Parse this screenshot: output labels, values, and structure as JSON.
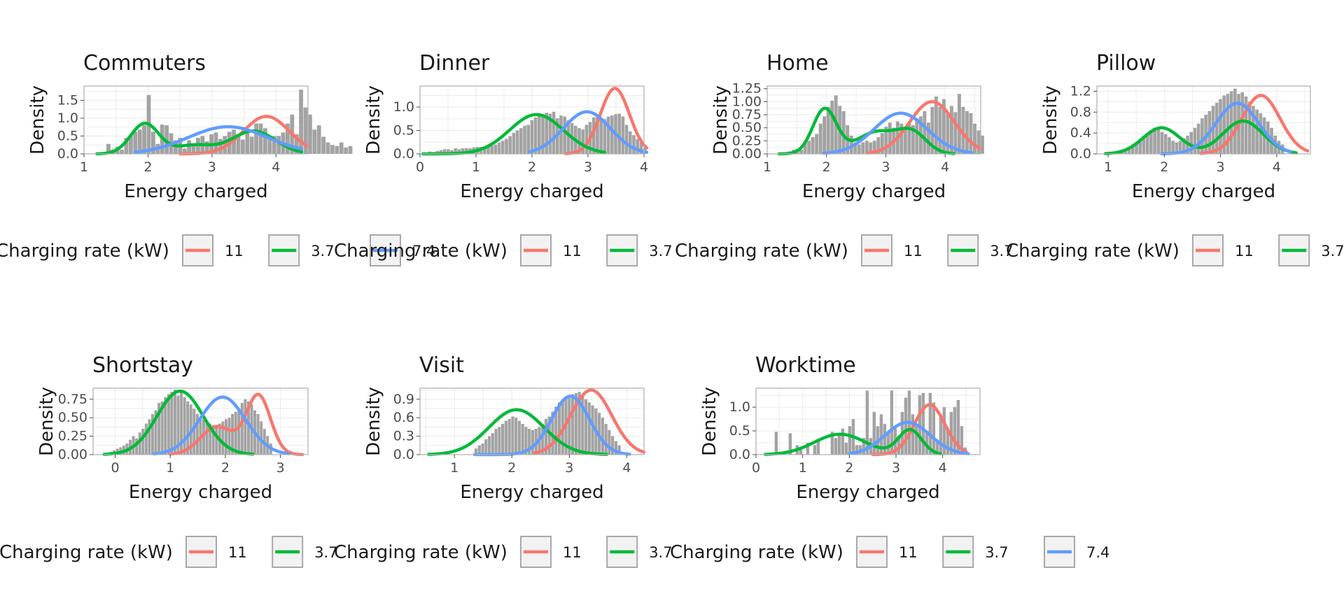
{
  "colors": {
    "rate_11": "#F8766D",
    "rate_3_7": "#00BA38",
    "rate_7_4": "#619CFF",
    "histogram": "#A3A3A3"
  },
  "legend": {
    "title": "Charging rate (kW)",
    "entries": [
      {
        "label": "11",
        "color": "#F8766D"
      },
      {
        "label": "3.7",
        "color": "#00BA38"
      },
      {
        "label": "7.4",
        "color": "#619CFF"
      }
    ]
  },
  "chart_data": [
    {
      "type": "area",
      "title": "Commuters",
      "xlabel": "Energy charged",
      "ylabel": "Density",
      "xlim": [
        1,
        4.5
      ],
      "ylim": [
        0,
        1.9
      ],
      "xticks": [
        1,
        2,
        3,
        4
      ],
      "yticks": [
        0.0,
        0.5,
        1.0,
        1.5
      ],
      "ytick_labels": [
        "0.0",
        "0.5",
        "1.0",
        "1.5"
      ],
      "grid": true,
      "histogram": {
        "range": [
          1.35,
          4.45
        ],
        "bin_width": 0.07,
        "heights": [
          0.28,
          0.12,
          0.2,
          0.12,
          0.45,
          0.5,
          0.62,
          0.68,
          0.8,
          1.65,
          0.62,
          0.28,
          0.82,
          0.8,
          0.58,
          0.38,
          0.45,
          0.15,
          0.38,
          0.22,
          0.45,
          0.5,
          0.35,
          0.55,
          0.6,
          0.42,
          0.5,
          0.62,
          0.68,
          0.5,
          0.4,
          0.58,
          0.48,
          0.85,
          0.85,
          0.72,
          0.48,
          0.5,
          0.5,
          0.6,
          0.85,
          1.1,
          0.55,
          1.8,
          1.3,
          1.1,
          0.68,
          0.8,
          0.48,
          0.32,
          0.25,
          0.22,
          0.32,
          0.18,
          0.22
        ]
      },
      "series": [
        {
          "name": "11",
          "color": "#F8766D",
          "x_range": [
            2.5,
            4.5
          ],
          "peak_x": 3.85,
          "peak_y": 1.05,
          "sd": 0.36
        },
        {
          "name": "3.7",
          "color": "#00BA38",
          "x_range": [
            1.2,
            4.4
          ],
          "components": [
            {
              "mean": 1.95,
              "sd": 0.22,
              "weight": 0.85
            },
            {
              "mean": 2.72,
              "sd": 0.3,
              "weight": 0.24
            },
            {
              "mean": 3.65,
              "sd": 0.34,
              "weight": 0.64
            }
          ]
        },
        {
          "name": "7.4",
          "color": "#619CFF",
          "x_range": [
            1.8,
            4.4
          ],
          "peak_x": 3.25,
          "peak_y": 0.76,
          "sd": 0.62
        }
      ]
    },
    {
      "type": "area",
      "title": "Dinner",
      "xlabel": "Energy charged",
      "ylabel": "Density",
      "xlim": [
        0,
        4
      ],
      "ylim": [
        0,
        1.45
      ],
      "xticks": [
        0,
        1,
        2,
        3,
        4
      ],
      "yticks": [
        0.0,
        0.5,
        1.0
      ],
      "ytick_labels": [
        "0.0",
        "0.5",
        "1.0"
      ],
      "grid": true,
      "histogram": {
        "range": [
          0.15,
          4.05
        ],
        "bin_width": 0.065,
        "heights": [
          0.05,
          0.04,
          0.06,
          0.08,
          0.1,
          0.1,
          0.08,
          0.12,
          0.1,
          0.12,
          0.12,
          0.12,
          0.14,
          0.15,
          0.15,
          0.16,
          0.18,
          0.18,
          0.2,
          0.24,
          0.28,
          0.32,
          0.38,
          0.45,
          0.5,
          0.55,
          0.6,
          0.62,
          0.72,
          0.78,
          0.82,
          0.84,
          0.88,
          0.86,
          0.9,
          0.76,
          0.82,
          0.8,
          0.72,
          0.66,
          0.6,
          0.55,
          0.52,
          0.62,
          0.68,
          0.78,
          0.8,
          0.72,
          0.74,
          0.8,
          0.82,
          0.85,
          0.86,
          0.8,
          0.62,
          0.48,
          0.4,
          0.32,
          0.24,
          0.12
        ]
      },
      "series": [
        {
          "name": "11",
          "color": "#F8766D",
          "x_range": [
            2.6,
            4.05
          ],
          "peak_x": 3.48,
          "peak_y": 1.4,
          "sd": 0.26
        },
        {
          "name": "3.7",
          "color": "#00BA38",
          "x_range": [
            0.05,
            3.3
          ],
          "peak_x": 2.08,
          "peak_y": 0.84,
          "sd": 0.48
        },
        {
          "name": "7.4",
          "color": "#619CFF",
          "x_range": [
            1.95,
            4.05
          ],
          "peak_x": 2.98,
          "peak_y": 0.9,
          "sd": 0.42
        }
      ]
    },
    {
      "type": "area",
      "title": "Home",
      "xlabel": "Energy charged",
      "ylabel": "Density",
      "xlim": [
        1,
        4.6
      ],
      "ylim": [
        0,
        1.3
      ],
      "xticks": [
        1,
        2,
        3,
        4
      ],
      "yticks": [
        0.0,
        0.25,
        0.5,
        0.75,
        1.0,
        1.25
      ],
      "ytick_labels": [
        "0.00",
        "0.25",
        "0.50",
        "0.75",
        "1.00",
        "1.25"
      ],
      "grid": true,
      "histogram": {
        "range": [
          1.35,
          4.55
        ],
        "bin_width": 0.065,
        "heights": [
          0.05,
          0.08,
          0.1,
          0.08,
          0.22,
          0.25,
          0.32,
          0.38,
          0.58,
          0.72,
          0.9,
          1.02,
          1.12,
          0.92,
          0.82,
          0.55,
          0.35,
          0.22,
          0.18,
          0.22,
          0.25,
          0.22,
          0.25,
          0.32,
          0.4,
          0.52,
          0.6,
          0.5,
          0.62,
          0.58,
          0.5,
          0.6,
          0.55,
          0.68,
          0.72,
          0.82,
          0.6,
          0.9,
          1.1,
          0.9,
          1.05,
          0.8,
          0.92,
          0.8,
          1.15,
          0.9,
          0.82,
          0.78,
          0.58,
          0.45,
          0.35
        ]
      },
      "series": [
        {
          "name": "11",
          "color": "#F8766D",
          "x_range": [
            2.7,
            4.6
          ],
          "peak_x": 3.78,
          "peak_y": 1.0,
          "sd": 0.38
        },
        {
          "name": "3.7",
          "color": "#00BA38",
          "x_range": [
            1.2,
            4.15
          ],
          "components": [
            {
              "mean": 1.97,
              "sd": 0.2,
              "weight": 0.86
            },
            {
              "mean": 2.85,
              "sd": 0.34,
              "weight": 0.42
            },
            {
              "mean": 3.45,
              "sd": 0.24,
              "weight": 0.38
            }
          ]
        },
        {
          "name": "7.4",
          "color": "#619CFF",
          "x_range": [
            1.95,
            4.45
          ],
          "peak_x": 3.25,
          "peak_y": 0.78,
          "sd": 0.45
        }
      ]
    },
    {
      "type": "area",
      "title": "Pillow",
      "xlabel": "Energy charged",
      "ylabel": "Density",
      "xlim": [
        0.8,
        4.6
      ],
      "ylim": [
        0,
        1.3
      ],
      "xticks": [
        1,
        2,
        3,
        4
      ],
      "yticks": [
        0.0,
        0.4,
        0.8,
        1.2
      ],
      "ytick_labels": [
        "0.0",
        "0.4",
        "0.8",
        "1.2"
      ],
      "grid": true,
      "histogram": {
        "range": [
          1.15,
          4.45
        ],
        "bin_width": 0.065,
        "heights": [
          0.05,
          0.08,
          0.1,
          0.12,
          0.18,
          0.22,
          0.28,
          0.35,
          0.4,
          0.45,
          0.5,
          0.48,
          0.42,
          0.38,
          0.32,
          0.25,
          0.22,
          0.25,
          0.3,
          0.35,
          0.42,
          0.5,
          0.58,
          0.68,
          0.75,
          0.82,
          0.92,
          0.98,
          1.05,
          1.12,
          1.15,
          1.2,
          1.25,
          1.15,
          1.18,
          1.1,
          1.0,
          0.92,
          0.85,
          0.78,
          0.7,
          0.62,
          0.5,
          0.35,
          0.25,
          0.18
        ]
      },
      "series": [
        {
          "name": "11",
          "color": "#F8766D",
          "x_range": [
            2.65,
            4.55
          ],
          "peak_x": 3.72,
          "peak_y": 1.12,
          "sd": 0.34
        },
        {
          "name": "3.7",
          "color": "#00BA38",
          "x_range": [
            0.95,
            4.35
          ],
          "components": [
            {
              "mean": 1.95,
              "sd": 0.33,
              "weight": 0.5
            },
            {
              "mean": 3.4,
              "sd": 0.36,
              "weight": 0.63
            }
          ]
        },
        {
          "name": "7.4",
          "color": "#619CFF",
          "x_range": [
            1.95,
            4.25
          ],
          "peak_x": 3.3,
          "peak_y": 0.97,
          "sd": 0.38
        }
      ]
    },
    {
      "type": "area",
      "title": "Shortstay",
      "xlabel": "Energy charged",
      "ylabel": "Density",
      "xlim": [
        -0.4,
        3.5
      ],
      "ylim": [
        0,
        0.9
      ],
      "xticks": [
        0,
        1,
        2,
        3
      ],
      "yticks": [
        0.0,
        0.25,
        0.5,
        0.75
      ],
      "ytick_labels": [
        "0.00",
        "0.25",
        "0.50",
        "0.75"
      ],
      "grid": true,
      "histogram": {
        "range": [
          -0.1,
          3.35
        ],
        "bin_width": 0.058,
        "heights": [
          0.04,
          0.06,
          0.08,
          0.1,
          0.12,
          0.15,
          0.2,
          0.25,
          0.22,
          0.3,
          0.35,
          0.42,
          0.48,
          0.55,
          0.6,
          0.7,
          0.72,
          0.78,
          0.82,
          0.85,
          0.88,
          0.8,
          0.85,
          0.78,
          0.72,
          0.68,
          0.62,
          0.55,
          0.5,
          0.48,
          0.45,
          0.42,
          0.4,
          0.38,
          0.42,
          0.45,
          0.48,
          0.5,
          0.55,
          0.58,
          0.62,
          0.7,
          0.75,
          0.72,
          0.68,
          0.6,
          0.55,
          0.45,
          0.35,
          0.25,
          0.15
        ]
      },
      "series": [
        {
          "name": "11",
          "color": "#F8766D",
          "x_range": [
            1.0,
            3.4
          ],
          "components": [
            {
              "mean": 1.85,
              "sd": 0.3,
              "weight": 0.38
            },
            {
              "mean": 2.6,
              "sd": 0.22,
              "weight": 0.8
            }
          ]
        },
        {
          "name": "3.7",
          "color": "#00BA38",
          "x_range": [
            -0.2,
            2.5
          ],
          "peak_x": 1.18,
          "peak_y": 0.86,
          "sd": 0.42
        },
        {
          "name": "7.4",
          "color": "#619CFF",
          "x_range": [
            0.7,
            3.15
          ],
          "peak_x": 1.95,
          "peak_y": 0.78,
          "sd": 0.42
        }
      ]
    },
    {
      "type": "area",
      "title": "Visit",
      "xlabel": "Energy charged",
      "ylabel": "Density",
      "xlim": [
        0.4,
        4.3
      ],
      "ylim": [
        0,
        1.08
      ],
      "xticks": [
        1,
        2,
        3,
        4
      ],
      "yticks": [
        0.0,
        0.3,
        0.6,
        0.9
      ],
      "ytick_labels": [
        "0.0",
        "0.3",
        "0.6",
        "0.9"
      ],
      "grid": true,
      "histogram": {
        "range": [
          1.35,
          4.25
        ],
        "bin_width": 0.058,
        "heights": [
          0.1,
          0.15,
          0.18,
          0.25,
          0.3,
          0.35,
          0.42,
          0.45,
          0.5,
          0.55,
          0.58,
          0.62,
          0.6,
          0.55,
          0.5,
          0.45,
          0.42,
          0.4,
          0.42,
          0.45,
          0.5,
          0.58,
          0.62,
          0.7,
          0.78,
          0.85,
          0.9,
          0.92,
          0.95,
          0.98,
          1.0,
          1.02,
          0.95,
          0.9,
          0.85,
          0.8,
          0.75,
          0.68,
          0.6,
          0.5,
          0.4,
          0.3,
          0.22,
          0.15
        ]
      },
      "series": [
        {
          "name": "11",
          "color": "#F8766D",
          "x_range": [
            2.4,
            4.3
          ],
          "peak_x": 3.38,
          "peak_y": 1.05,
          "sd": 0.36
        },
        {
          "name": "3.7",
          "color": "#00BA38",
          "x_range": [
            0.55,
            3.65
          ],
          "peak_x": 2.08,
          "peak_y": 0.73,
          "sd": 0.48
        },
        {
          "name": "7.4",
          "color": "#619CFF",
          "x_range": [
            1.35,
            4.05
          ],
          "peak_x": 3.02,
          "peak_y": 0.95,
          "sd": 0.33
        }
      ]
    },
    {
      "type": "area",
      "title": "Worktime",
      "xlabel": "Energy charged",
      "ylabel": "Density",
      "xlim": [
        0,
        4.8
      ],
      "ylim": [
        0,
        1.4
      ],
      "xticks": [
        0,
        1,
        2,
        3,
        4
      ],
      "yticks": [
        0.0,
        0.5,
        1.0
      ],
      "ytick_labels": [
        "0.0",
        "0.5",
        "1.0"
      ],
      "grid": true,
      "histogram": {
        "range": [
          0.4,
          4.5
        ],
        "bin_width": 0.075,
        "heights": [
          0.48,
          0.0,
          0.0,
          0.0,
          0.45,
          0.0,
          0.2,
          0.15,
          0.0,
          0.25,
          0.0,
          0.2,
          0.3,
          0.0,
          0.0,
          0.0,
          0.48,
          0.35,
          0.45,
          0.55,
          0.25,
          0.6,
          0.75,
          0.2,
          0.2,
          0.35,
          1.35,
          0.35,
          0.9,
          0.6,
          0.85,
          0.65,
          0.45,
          1.35,
          0.6,
          0.4,
          0.9,
          1.2,
          1.35,
          0.85,
          0.6,
          1.25,
          1.3,
          0.45,
          1.3,
          1.1,
          0.3,
          0.85,
          1.0,
          0.55,
          0.9,
          1.0,
          1.15,
          0.6,
          0.15
        ]
      },
      "series": [
        {
          "name": "11",
          "color": "#F8766D",
          "x_range": [
            2.5,
            4.5
          ],
          "peak_x": 3.72,
          "peak_y": 1.05,
          "sd": 0.33
        },
        {
          "name": "3.7",
          "color": "#00BA38",
          "x_range": [
            0.2,
            3.95
          ],
          "components": [
            {
              "mean": 1.8,
              "sd": 0.55,
              "weight": 0.43
            },
            {
              "mean": 3.3,
              "sd": 0.25,
              "weight": 0.52
            }
          ]
        },
        {
          "name": "7.4",
          "color": "#619CFF",
          "x_range": [
            2.0,
            4.55
          ],
          "peak_x": 3.25,
          "peak_y": 0.68,
          "sd": 0.48
        }
      ]
    }
  ],
  "legends": [
    {
      "entries_shown": 3
    },
    {
      "entries_shown": 2
    },
    {
      "entries_shown": 2
    },
    {
      "entries_shown": 3
    },
    {
      "entries_shown": 2
    },
    {
      "entries_shown": 2
    },
    {
      "entries_shown": 3
    }
  ]
}
